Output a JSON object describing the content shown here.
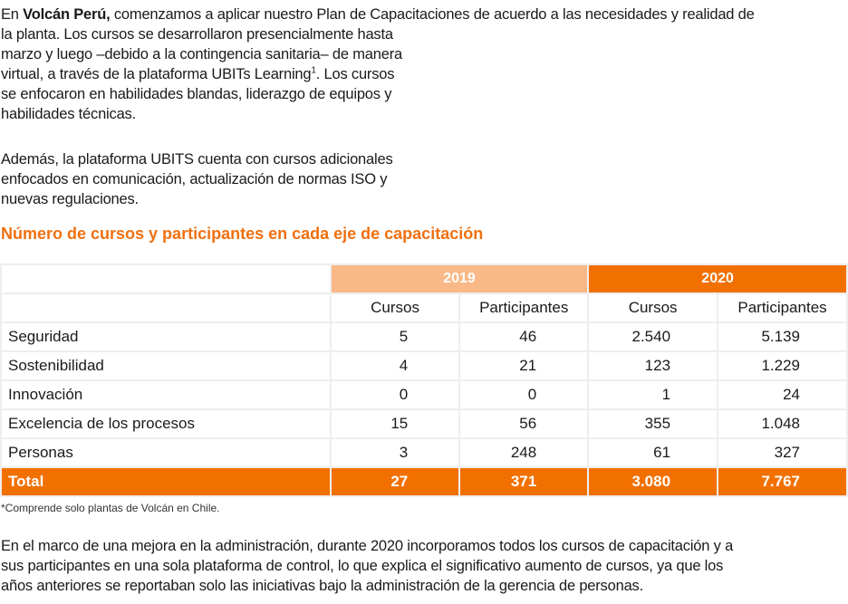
{
  "intro": {
    "line1_prefix": "En ",
    "line1_bold": "Volcán Perú,",
    "line1_rest": " comenzamos a aplicar nuestro Plan de Capacitaciones de acuerdo a las necesidades y realidad de",
    "lines": [
      "la planta. Los cursos se desarrollaron presencialmente hasta",
      "marzo y luego –debido a la contingencia sanitaria– de manera"
    ],
    "line4_text": "virtual, a través de la plataforma UBITs Learning",
    "line4_sup": "1",
    "line4_rest": ". Los cursos",
    "lines_after": [
      "se enfocaron en habilidades blandas, liderazgo de equipos y",
      "habilidades técnicas."
    ]
  },
  "para2": {
    "lines": [
      "Además, la plataforma UBITS cuenta con cursos adicionales",
      "enfocados en comunicación, actualización de normas ISO y",
      "nuevas regulaciones."
    ]
  },
  "table_title": "Número de cursos y participantes en cada eje de capacitación",
  "table": {
    "years": [
      "2019",
      "2020"
    ],
    "subheaders": [
      "Cursos",
      "Participantes",
      "Cursos",
      "Participantes"
    ],
    "rows": [
      {
        "label": "Seguridad",
        "values": [
          "5",
          "46",
          "2.540",
          "5.139"
        ]
      },
      {
        "label": "Sostenibilidad",
        "values": [
          "4",
          "21",
          "123",
          "1.229"
        ]
      },
      {
        "label": "Innovación",
        "values": [
          "0",
          "0",
          "1",
          "24"
        ]
      },
      {
        "label": "Excelencia de los procesos",
        "values": [
          "15",
          "56",
          "355",
          "1.048"
        ]
      },
      {
        "label": "Personas",
        "values": [
          "3",
          "248",
          "61",
          "327"
        ]
      }
    ],
    "total": {
      "label": "Total",
      "values": [
        "27",
        "371",
        "3.080",
        "7.767"
      ]
    },
    "colors": {
      "year_2019": "#f9b887",
      "year_2020": "#f27000",
      "title": "#f07010"
    }
  },
  "footnote": "*Comprende solo plantas de Volcán en Chile.",
  "closing": {
    "lines": [
      "En el marco de una mejora en la administración, durante 2020 incorporamos todos los cursos de capacitación y a",
      "sus participantes en una sola plataforma de control, lo que explica el significativo aumento de cursos, ya que los",
      "años anteriores se reportaban solo las iniciativas bajo la administración de la gerencia de personas."
    ]
  }
}
